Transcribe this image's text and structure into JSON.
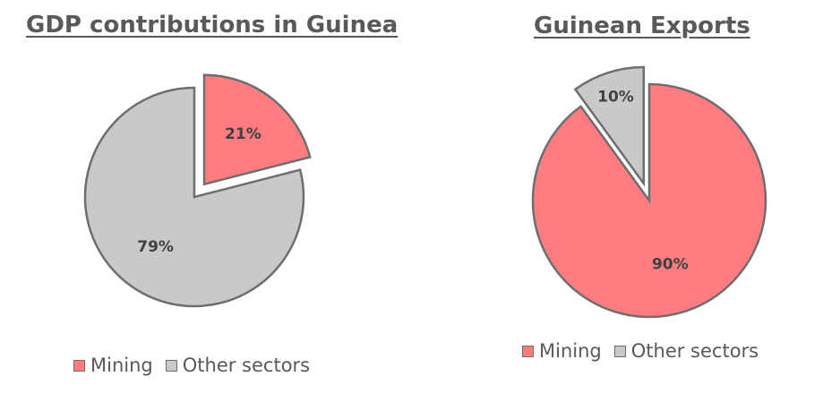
{
  "chart_data": [
    {
      "type": "pie",
      "title": "GDP contributions in Guinea",
      "categories": [
        "Mining",
        "Other sectors"
      ],
      "values": [
        21,
        79
      ],
      "labels": [
        "21%",
        "79%"
      ],
      "exploded": [
        "Mining"
      ],
      "legend": {
        "position": "bottom",
        "entries": [
          "Mining",
          "Other sectors"
        ]
      }
    },
    {
      "type": "pie",
      "title": "Guinean Exports",
      "categories": [
        "Mining",
        "Other sectors"
      ],
      "values": [
        90,
        10
      ],
      "labels": [
        "90%",
        "10%"
      ],
      "exploded": [
        "Other sectors"
      ],
      "legend": {
        "position": "bottom",
        "entries": [
          "Mining",
          "Other sectors"
        ]
      }
    }
  ],
  "colors": {
    "Mining": "#ff7c80",
    "Other sectors": "#c9c9c9",
    "outline": "#6e6e6e",
    "label_text": "#404040"
  }
}
